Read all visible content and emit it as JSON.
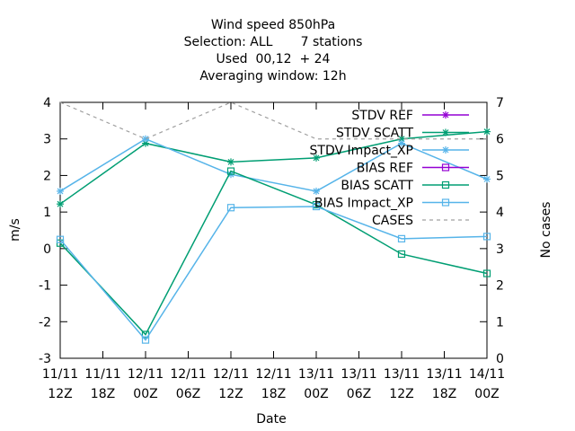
{
  "chart_data": {
    "type": "line",
    "title_lines": [
      "Wind speed 850hPa",
      "Selection: ALL       7 stations",
      "Used  00,12  + 24",
      "Averaging window: 12h"
    ],
    "xlabel": "Date",
    "ylabel": "m/s",
    "y2label": "No cases",
    "x_ticks": [
      {
        "d": "11/11",
        "h": "12Z"
      },
      {
        "d": "11/11",
        "h": "18Z"
      },
      {
        "d": "12/11",
        "h": "00Z"
      },
      {
        "d": "12/11",
        "h": "06Z"
      },
      {
        "d": "12/11",
        "h": "12Z"
      },
      {
        "d": "12/11",
        "h": "18Z"
      },
      {
        "d": "13/11",
        "h": "00Z"
      },
      {
        "d": "13/11",
        "h": "06Z"
      },
      {
        "d": "13/11",
        "h": "12Z"
      },
      {
        "d": "13/11",
        "h": "18Z"
      },
      {
        "d": "14/11",
        "h": "00Z"
      }
    ],
    "ylim": [
      -3,
      4
    ],
    "y_ticks": [
      -3,
      -2,
      -1,
      0,
      1,
      2,
      3,
      4
    ],
    "y2lim": [
      0,
      7
    ],
    "y2_ticks": [
      0,
      1,
      2,
      3,
      4,
      5,
      6,
      7
    ],
    "grid": false,
    "legend_position": "top-right",
    "series": [
      {
        "name": "STDV REF",
        "axis": "y",
        "color": "#9400d3",
        "dash": "",
        "marker": "star",
        "x": [],
        "values": []
      },
      {
        "name": "STDV SCATT",
        "axis": "y",
        "color": "#009e73",
        "dash": "",
        "marker": "star",
        "x": [
          0,
          2,
          4,
          6,
          8,
          10
        ],
        "values": [
          1.22,
          2.88,
          2.37,
          2.48,
          3.0,
          3.2
        ]
      },
      {
        "name": "STDV Impact_XP",
        "axis": "y",
        "color": "#56b4e9",
        "dash": "",
        "marker": "star",
        "x": [
          0,
          2,
          4,
          6,
          8,
          10
        ],
        "values": [
          1.57,
          3.0,
          2.03,
          1.57,
          2.88,
          1.9
        ]
      },
      {
        "name": "BIAS REF",
        "axis": "y",
        "color": "#9400d3",
        "dash": "",
        "marker": "square",
        "x": [],
        "values": []
      },
      {
        "name": "BIAS SCATT",
        "axis": "y",
        "color": "#009e73",
        "dash": "",
        "marker": "square",
        "x": [
          0,
          2,
          4,
          6,
          8,
          10
        ],
        "values": [
          0.15,
          -2.35,
          2.12,
          1.2,
          -0.15,
          -0.68
        ]
      },
      {
        "name": "BIAS Impact_XP",
        "axis": "y",
        "color": "#56b4e9",
        "dash": "",
        "marker": "square",
        "x": [
          0,
          2,
          4,
          6,
          8,
          10
        ],
        "values": [
          0.25,
          -2.5,
          1.12,
          1.15,
          0.27,
          0.33
        ]
      },
      {
        "name": "CASES",
        "axis": "y2",
        "color": "#a0a0a0",
        "dash": "4,4",
        "marker": "none",
        "x": [
          0,
          2,
          4,
          6,
          8,
          10
        ],
        "values": [
          7,
          6,
          7,
          6,
          6,
          6
        ]
      }
    ]
  }
}
